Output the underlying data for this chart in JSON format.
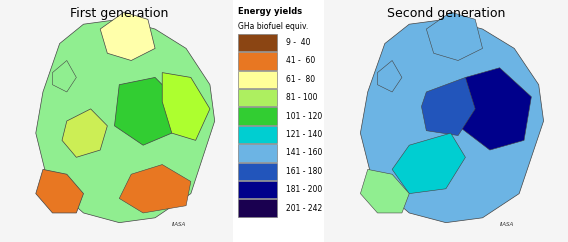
{
  "title_left": "First generation",
  "title_right": "Second generation",
  "legend_title_line1": "Energy yields",
  "legend_title_line2": "GHa biofuel equiv.",
  "legend_entries": [
    {
      "label": "9 -  40",
      "color": "#8B4513"
    },
    {
      "label": "41 -  60",
      "color": "#E87722"
    },
    {
      "label": "61 -  80",
      "color": "#FFFF99"
    },
    {
      "label": "81 - 100",
      "color": "#ADEF60"
    },
    {
      "label": "101 - 120",
      "color": "#32CD32"
    },
    {
      "label": "121 - 140",
      "color": "#00CED1"
    },
    {
      "label": "141 - 160",
      "color": "#6CB4E4"
    },
    {
      "label": "161 - 180",
      "color": "#2255BB"
    },
    {
      "label": "181 - 200",
      "color": "#00008B"
    },
    {
      "label": "201 - 242",
      "color": "#1A0050"
    }
  ],
  "bg_color": "#FFFFFF",
  "left_map_bg": "#E8E8E8",
  "right_map_bg": "#E8E8E8",
  "figsize": [
    5.68,
    2.42
  ],
  "dpi": 100
}
